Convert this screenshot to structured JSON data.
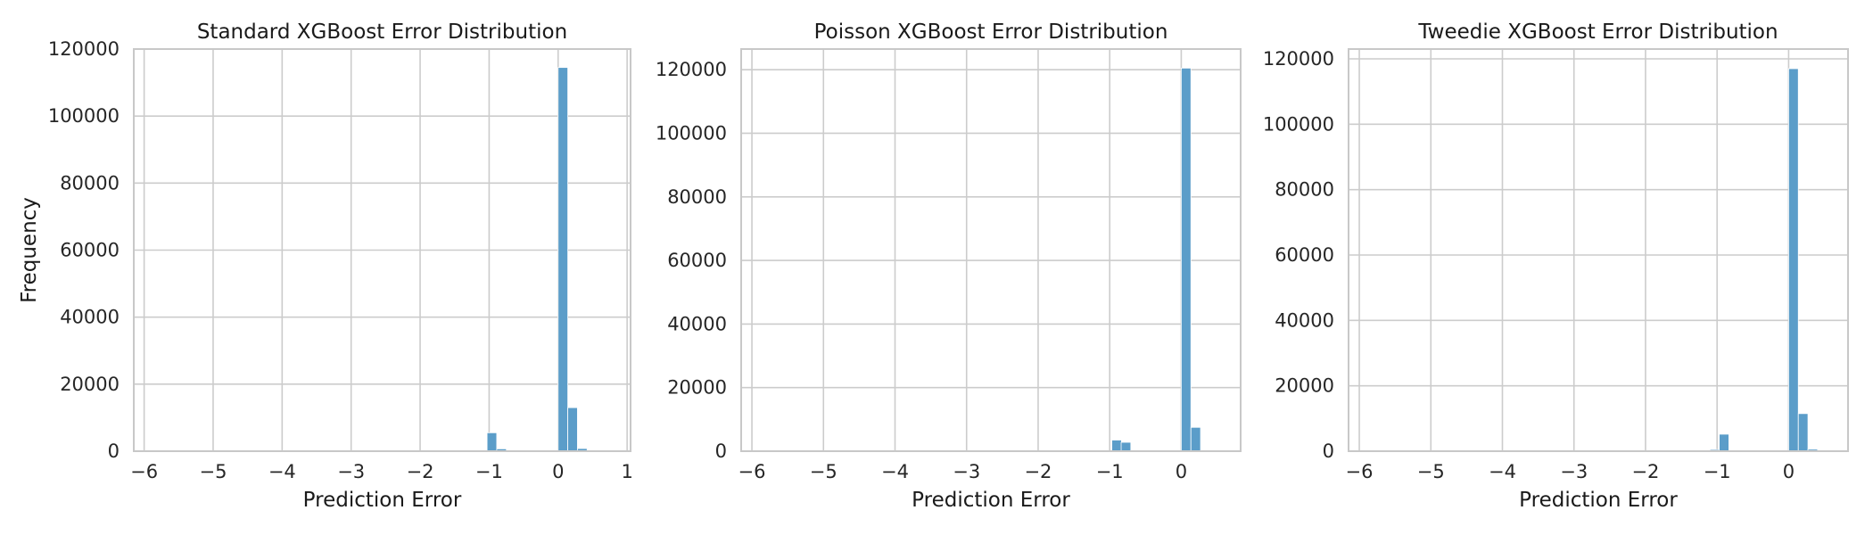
{
  "page": {
    "background": "#ffffff"
  },
  "style": {
    "bar_color": "#5b9dc9",
    "grid_color": "#cccccc",
    "frame_color": "#c8c8c8"
  },
  "chart_data": [
    {
      "type": "bar",
      "title": "Standard XGBoost Error Distribution",
      "xlabel": "Prediction Error",
      "ylabel": "Frequency",
      "grid": true,
      "xlim": [
        -6.15,
        1.05
      ],
      "ylim": [
        0,
        120000
      ],
      "xticks": [
        -6,
        -5,
        -4,
        -3,
        -2,
        -1,
        0,
        1
      ],
      "xtick_labels": [
        "−6",
        "−5",
        "−4",
        "−3",
        "−2",
        "−1",
        "0",
        "1"
      ],
      "yticks": [
        0,
        20000,
        40000,
        60000,
        80000,
        100000,
        120000
      ],
      "ytick_labels": [
        "0",
        "20000",
        "40000",
        "60000",
        "80000",
        "100000",
        "120000"
      ],
      "bin_width": 0.14,
      "x": [
        -1.03,
        -0.89,
        0.0,
        0.14,
        0.28
      ],
      "values": [
        5500,
        700,
        114500,
        13000,
        800
      ]
    },
    {
      "type": "bar",
      "title": "Poisson XGBoost Error Distribution",
      "xlabel": "Prediction Error",
      "ylabel": "",
      "grid": true,
      "xlim": [
        -6.15,
        0.83
      ],
      "ylim": [
        0,
        126500
      ],
      "xticks": [
        -6,
        -5,
        -4,
        -3,
        -2,
        -1,
        0
      ],
      "xtick_labels": [
        "−6",
        "−5",
        "−4",
        "−3",
        "−2",
        "−1",
        "0"
      ],
      "yticks": [
        0,
        20000,
        40000,
        60000,
        80000,
        100000,
        120000
      ],
      "ytick_labels": [
        "0",
        "20000",
        "40000",
        "60000",
        "80000",
        "100000",
        "120000"
      ],
      "bin_width": 0.135,
      "x": [
        -0.97,
        -0.84,
        0.0,
        0.135
      ],
      "values": [
        3500,
        2800,
        120500,
        7500
      ]
    },
    {
      "type": "bar",
      "title": "Tweedie XGBoost Error Distribution",
      "xlabel": "Prediction Error",
      "ylabel": "",
      "grid": true,
      "xlim": [
        -6.15,
        0.83
      ],
      "ylim": [
        0,
        123000
      ],
      "xticks": [
        -6,
        -5,
        -4,
        -3,
        -2,
        -1,
        0
      ],
      "xtick_labels": [
        "−6",
        "−5",
        "−4",
        "−3",
        "−2",
        "−1",
        "0"
      ],
      "yticks": [
        0,
        20000,
        40000,
        60000,
        80000,
        100000,
        120000
      ],
      "ytick_labels": [
        "0",
        "20000",
        "40000",
        "60000",
        "80000",
        "100000",
        "120000"
      ],
      "bin_width": 0.135,
      "x": [
        -1.1,
        -0.97,
        0.0,
        0.135,
        0.27
      ],
      "values": [
        500,
        5200,
        117000,
        11500,
        600
      ]
    }
  ]
}
